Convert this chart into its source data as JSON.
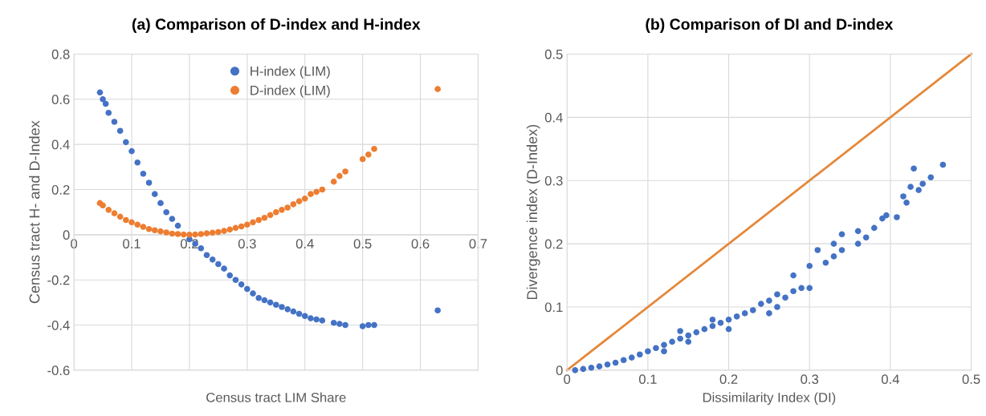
{
  "chart_data": [
    {
      "type": "scatter",
      "title": "(a) Comparison of D-index and H-index",
      "xlabel": "Census tract LIM Share",
      "ylabel": "Census tract H- and D-Index",
      "xlim": [
        0,
        0.7
      ],
      "xticks": [
        0,
        0.1,
        0.2,
        0.3,
        0.4,
        0.5,
        0.6,
        0.7
      ],
      "ylim": [
        -0.6,
        0.8
      ],
      "yticks": [
        -0.6,
        -0.4,
        -0.2,
        0,
        0.2,
        0.4,
        0.6,
        0.8
      ],
      "grid": true,
      "legend": "top",
      "marker": "circle",
      "series": [
        {
          "name": "H-index (LIM)",
          "color": "#4472c4",
          "x": [
            0.045,
            0.05,
            0.055,
            0.06,
            0.07,
            0.08,
            0.09,
            0.1,
            0.11,
            0.12,
            0.13,
            0.14,
            0.15,
            0.16,
            0.17,
            0.18,
            0.19,
            0.2,
            0.21,
            0.22,
            0.23,
            0.24,
            0.25,
            0.26,
            0.27,
            0.28,
            0.29,
            0.3,
            0.31,
            0.32,
            0.33,
            0.34,
            0.35,
            0.36,
            0.37,
            0.38,
            0.39,
            0.4,
            0.41,
            0.42,
            0.43,
            0.45,
            0.46,
            0.47,
            0.5,
            0.51,
            0.52,
            0.63
          ],
          "values": [
            0.63,
            0.6,
            0.58,
            0.54,
            0.5,
            0.46,
            0.41,
            0.37,
            0.32,
            0.27,
            0.23,
            0.18,
            0.14,
            0.1,
            0.07,
            0.04,
            null,
            -0.02,
            -0.04,
            -0.06,
            -0.09,
            -0.11,
            -0.13,
            -0.15,
            -0.18,
            -0.2,
            -0.22,
            -0.24,
            -0.26,
            -0.28,
            -0.29,
            -0.3,
            -0.31,
            -0.32,
            -0.33,
            -0.34,
            -0.35,
            -0.36,
            -0.37,
            -0.375,
            -0.38,
            -0.39,
            -0.395,
            -0.4,
            -0.405,
            -0.4,
            -0.4,
            -0.335
          ]
        },
        {
          "name": "D-index (LIM)",
          "color": "#ed7d31",
          "x": [
            0.045,
            0.05,
            0.06,
            0.07,
            0.08,
            0.09,
            0.1,
            0.11,
            0.12,
            0.13,
            0.14,
            0.15,
            0.16,
            0.17,
            0.18,
            0.19,
            0.2,
            0.21,
            0.22,
            0.23,
            0.24,
            0.25,
            0.26,
            0.27,
            0.28,
            0.29,
            0.3,
            0.31,
            0.32,
            0.33,
            0.34,
            0.35,
            0.36,
            0.37,
            0.38,
            0.39,
            0.4,
            0.41,
            0.42,
            0.43,
            0.45,
            0.46,
            0.47,
            0.5,
            0.51,
            0.52,
            0.63
          ],
          "values": [
            0.14,
            0.13,
            0.11,
            0.095,
            0.08,
            0.065,
            0.055,
            0.045,
            0.035,
            0.025,
            0.02,
            0.015,
            0.01,
            0.005,
            0.003,
            0.001,
            0,
            0.001,
            0.003,
            0.006,
            0.009,
            0.012,
            0.017,
            0.023,
            0.03,
            0.037,
            0.045,
            0.055,
            0.065,
            0.075,
            0.087,
            0.1,
            0.11,
            0.12,
            0.135,
            0.148,
            0.16,
            0.18,
            0.19,
            0.2,
            0.235,
            0.26,
            0.28,
            0.335,
            0.355,
            0.38,
            0.645
          ]
        }
      ]
    },
    {
      "type": "scatter",
      "title": "(b) Comparison of DI and D-index",
      "xlabel": "Dissimilarity Index (DI)",
      "ylabel": "Divergence index (D-Index)",
      "xlim": [
        0,
        0.5
      ],
      "xticks": [
        0,
        0.1,
        0.2,
        0.3,
        0.4,
        0.5
      ],
      "ylim": [
        0,
        0.5
      ],
      "yticks": [
        0,
        0.1,
        0.2,
        0.3,
        0.4,
        0.5
      ],
      "grid": true,
      "marker": "circle",
      "series": [
        {
          "color": "#4472c4",
          "x": [
            0.01,
            0.02,
            0.03,
            0.04,
            0.05,
            0.06,
            0.07,
            0.08,
            0.09,
            0.1,
            0.11,
            0.12,
            0.12,
            0.13,
            0.14,
            0.14,
            0.15,
            0.15,
            0.16,
            0.17,
            0.18,
            0.18,
            0.19,
            0.2,
            0.2,
            0.21,
            0.22,
            0.23,
            0.24,
            0.25,
            0.25,
            0.26,
            0.26,
            0.27,
            0.28,
            0.28,
            0.29,
            0.3,
            0.3,
            0.31,
            0.32,
            0.33,
            0.33,
            0.34,
            0.34,
            0.36,
            0.36,
            0.37,
            0.38,
            0.39,
            0.395,
            0.408,
            0.416,
            0.42,
            0.425,
            0.429,
            0.435,
            0.44,
            0.45,
            0.465
          ],
          "values": [
            0.0,
            0.002,
            0.004,
            0.006,
            0.009,
            0.012,
            0.016,
            0.02,
            0.025,
            0.03,
            0.035,
            0.04,
            0.03,
            0.045,
            0.05,
            0.062,
            0.055,
            0.045,
            0.06,
            0.065,
            0.07,
            0.08,
            0.075,
            0.08,
            0.065,
            0.085,
            0.09,
            0.095,
            0.105,
            0.11,
            0.09,
            0.12,
            0.1,
            0.115,
            0.15,
            0.125,
            0.13,
            0.165,
            0.13,
            0.19,
            0.17,
            0.2,
            0.18,
            0.215,
            0.19,
            0.22,
            0.2,
            0.21,
            0.225,
            0.24,
            0.245,
            0.242,
            0.275,
            0.265,
            0.29,
            0.319,
            0.285,
            0.295,
            0.305,
            0.325
          ]
        },
        {
          "type": "line",
          "color": "#e5883a",
          "marker": "none",
          "x": [
            0,
            0.5
          ],
          "values": [
            0,
            0.5
          ]
        }
      ]
    }
  ]
}
